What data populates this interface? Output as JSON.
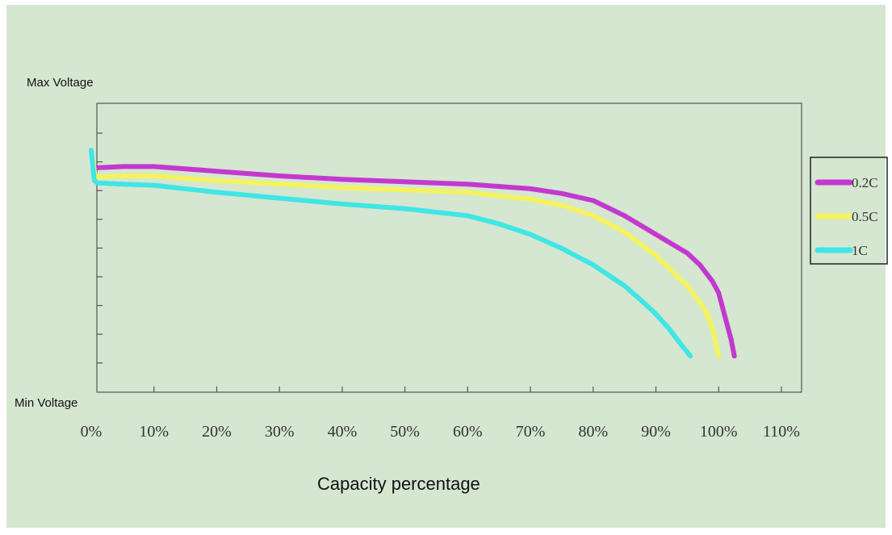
{
  "chart_data": {
    "type": "line",
    "title": "",
    "xlabel": "Capacity percentage",
    "ylabel": "",
    "y_top_label": "Max Voltage",
    "y_bottom_label": "Min Voltage",
    "xlim": [
      0,
      110
    ],
    "ylim": [
      0,
      100
    ],
    "x_tick_values": [
      0,
      10,
      20,
      30,
      40,
      50,
      60,
      70,
      80,
      90,
      100,
      110
    ],
    "x_tick_labels": [
      "0%",
      "10%",
      "20%",
      "30%",
      "40%",
      "50%",
      "60%",
      "70%",
      "80%",
      "90%",
      "100%",
      "110%"
    ],
    "grid": false,
    "legend_position": "right",
    "series": [
      {
        "name": "0.2C",
        "color": "#c339cf",
        "points": [
          [
            1,
            83.5
          ],
          [
            5,
            84
          ],
          [
            10,
            84
          ],
          [
            20,
            82
          ],
          [
            30,
            80
          ],
          [
            40,
            78.5
          ],
          [
            50,
            77.5
          ],
          [
            60,
            76.5
          ],
          [
            70,
            74.5
          ],
          [
            75,
            72.5
          ],
          [
            80,
            69.5
          ],
          [
            85,
            63
          ],
          [
            90,
            55
          ],
          [
            95,
            47
          ],
          [
            97,
            42
          ],
          [
            99,
            35
          ],
          [
            100,
            30
          ],
          [
            101,
            20
          ],
          [
            102,
            10
          ],
          [
            102.5,
            3
          ]
        ]
      },
      {
        "name": "0.5C",
        "color": "#f4f35f",
        "points": [
          [
            0.3,
            86
          ],
          [
            0.6,
            80
          ],
          [
            1,
            79.5
          ],
          [
            5,
            80
          ],
          [
            10,
            80
          ],
          [
            20,
            78
          ],
          [
            30,
            76.5
          ],
          [
            40,
            75
          ],
          [
            50,
            74
          ],
          [
            60,
            73
          ],
          [
            70,
            70
          ],
          [
            75,
            67.5
          ],
          [
            80,
            63
          ],
          [
            85,
            56
          ],
          [
            90,
            46
          ],
          [
            95,
            33
          ],
          [
            97,
            26
          ],
          [
            98,
            22
          ],
          [
            99,
            15
          ],
          [
            100,
            3
          ]
        ]
      },
      {
        "name": "1C",
        "color": "#40e6e4",
        "points": [
          [
            0,
            91
          ],
          [
            0.5,
            78
          ],
          [
            1,
            77
          ],
          [
            5,
            76.5
          ],
          [
            10,
            76
          ],
          [
            20,
            73
          ],
          [
            30,
            70.5
          ],
          [
            40,
            68
          ],
          [
            50,
            66
          ],
          [
            60,
            63
          ],
          [
            65,
            59.5
          ],
          [
            70,
            55
          ],
          [
            75,
            49
          ],
          [
            80,
            42
          ],
          [
            85,
            33
          ],
          [
            88,
            26
          ],
          [
            90,
            21
          ],
          [
            92,
            15
          ],
          [
            94,
            8
          ],
          [
            95.5,
            3
          ]
        ]
      }
    ]
  }
}
